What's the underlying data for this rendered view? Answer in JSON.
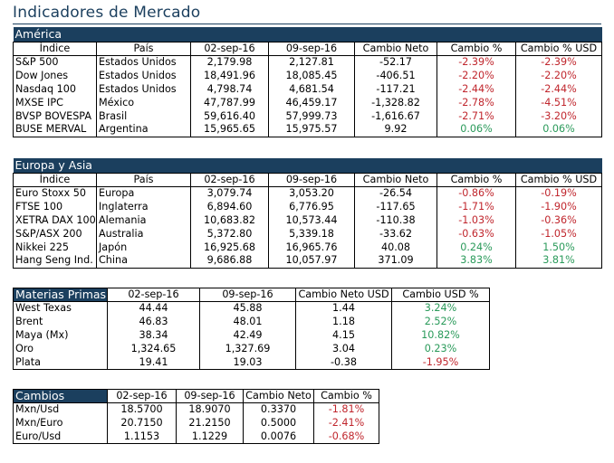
{
  "title": "Indicadores de Mercado",
  "sections": {
    "america": {
      "name": "América",
      "headers": [
        "Índice",
        "País",
        "02-sep-16",
        "09-sep-16",
        "Cambio Neto",
        "Cambio %",
        "Cambio % USD"
      ],
      "rows": [
        [
          "S&P 500",
          "Estados Unidos",
          "2,179.98",
          "2,127.81",
          "-52.17",
          "-2.39%",
          "-2.39%"
        ],
        [
          "Dow Jones",
          "Estados Unidos",
          "18,491.96",
          "18,085.45",
          "-406.51",
          "-2.20%",
          "-2.20%"
        ],
        [
          "Nasdaq 100",
          "Estados Unidos",
          "4,798.74",
          "4,681.54",
          "-117.21",
          "-2.44%",
          "-2.44%"
        ],
        [
          "MXSE IPC",
          "México",
          "47,787.99",
          "46,459.17",
          "-1,328.82",
          "-2.78%",
          "-4.51%"
        ],
        [
          "BVSP BOVESPA",
          "Brasil",
          "59,616.40",
          "57,999.73",
          "-1,616.67",
          "-2.71%",
          "-3.20%"
        ],
        [
          "BUSE MERVAL",
          "Argentina",
          "15,965.65",
          "15,975.57",
          "9.92",
          "0.06%",
          "0.06%"
        ]
      ]
    },
    "europa": {
      "name": "Europa y Asia",
      "headers": [
        "Índice",
        "País",
        "02-sep-16",
        "09-sep-16",
        "Cambio Neto",
        "Cambio %",
        "Cambio % USD"
      ],
      "rows": [
        [
          "Euro Stoxx 50",
          "Europa",
          "3,079.74",
          "3,053.20",
          "-26.54",
          "-0.86%",
          "-0.19%"
        ],
        [
          "FTSE 100",
          "Inglaterra",
          "6,894.60",
          "6,776.95",
          "-117.65",
          "-1.71%",
          "-1.90%"
        ],
        [
          "XETRA DAX 100",
          "Alemania",
          "10,683.82",
          "10,573.44",
          "-110.38",
          "-1.03%",
          "-0.36%"
        ],
        [
          "S&P/ASX 200",
          "Australia",
          "5,372.80",
          "5,339.18",
          "-33.62",
          "-0.63%",
          "-1.05%"
        ],
        [
          "Nikkei 225",
          "Japón",
          "16,925.68",
          "16,965.76",
          "40.08",
          "0.24%",
          "1.50%"
        ],
        [
          "Hang Seng Ind.",
          "China",
          "9,686.88",
          "10,057.97",
          "371.09",
          "3.83%",
          "3.81%"
        ]
      ]
    },
    "materias": {
      "name": "Materias Primas",
      "headers": [
        "02-sep-16",
        "09-sep-16",
        "Cambio Neto USD",
        "Cambio USD %"
      ],
      "rows": [
        [
          "West Texas",
          "44.44",
          "45.88",
          "1.44",
          "3.24%"
        ],
        [
          "Brent",
          "46.83",
          "48.01",
          "1.18",
          "2.52%"
        ],
        [
          "Maya (Mx)",
          "38.34",
          "42.49",
          "4.15",
          "10.82%"
        ],
        [
          "Oro",
          "1,324.65",
          "1,327.69",
          "3.04",
          "0.23%"
        ],
        [
          "Plata",
          "19.41",
          "19.03",
          "-0.38",
          "-1.95%"
        ]
      ]
    },
    "cambios": {
      "name": "Cambios",
      "headers": [
        "02-sep-16",
        "09-sep-16",
        "Cambio Neto",
        "Cambio %"
      ],
      "rows": [
        [
          "Mxn/Usd",
          "18.5700",
          "18.9070",
          "0.3370",
          "-1.81%"
        ],
        [
          "Mxn/Euro",
          "20.7150",
          "21.2150",
          "0.5000",
          "-2.41%"
        ],
        [
          "Euro/Usd",
          "1.1153",
          "1.1229",
          "0.0076",
          "-0.68%"
        ]
      ]
    }
  },
  "colors": {
    "header_bg": "#1b3f5e",
    "negative": "#c0262d",
    "positive": "#2a9a5a"
  }
}
